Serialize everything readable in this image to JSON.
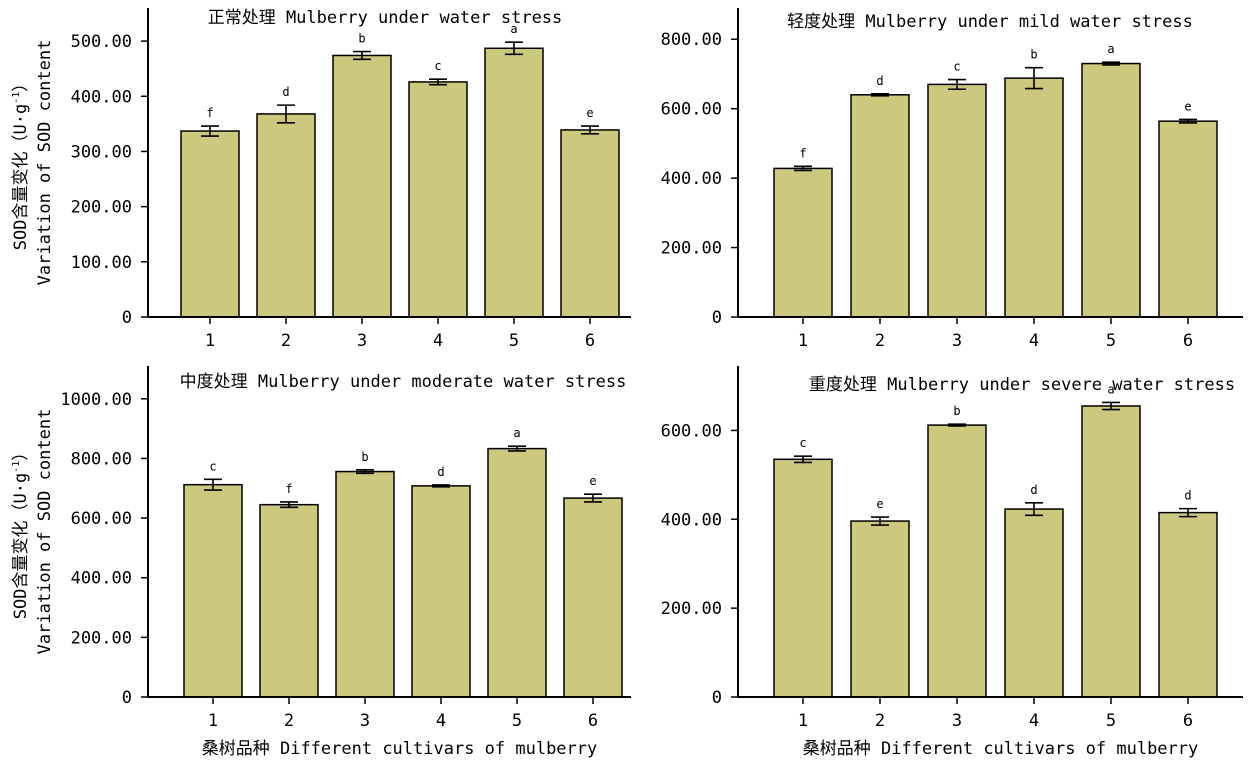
{
  "colors": {
    "bar_fill": "#CCC97E",
    "axis": "#000000"
  },
  "ylabel_line1": "SOD含量变化（U·g",
  "ylabel_sup": "-1",
  "ylabel_close": "）",
  "ylabel_line2": "Variation of SOD content",
  "xlabel": "桑树品种 Different cultivars of mulberry",
  "chart_data": [
    {
      "type": "bar",
      "title": "正常处理 Mulberry under water stress",
      "categories": [
        "1",
        "2",
        "3",
        "4",
        "5",
        "6"
      ],
      "values": [
        337,
        368,
        474,
        426,
        487,
        339
      ],
      "errors": [
        9,
        16,
        7,
        5,
        11,
        7
      ],
      "sig_letters": [
        "f",
        "d",
        "b",
        "c",
        "a",
        "e"
      ],
      "ylim": [
        0,
        560
      ],
      "yticks": [
        0,
        100,
        200,
        300,
        400,
        500
      ],
      "ytick_labels": [
        "0",
        "100.00",
        "200.00",
        "300.00",
        "400.00",
        "500.00"
      ]
    },
    {
      "type": "bar",
      "title": "轻度处理 Mulberry under mild water stress",
      "categories": [
        "1",
        "2",
        "3",
        "4",
        "5",
        "6"
      ],
      "values": [
        428,
        640,
        670,
        688,
        730,
        564
      ],
      "errors": [
        6,
        3,
        14,
        30,
        4,
        5
      ],
      "sig_letters": [
        "f",
        "d",
        "c",
        "b",
        "a",
        "e"
      ],
      "ylim": [
        0,
        890
      ],
      "yticks": [
        0,
        200,
        400,
        600,
        800
      ],
      "ytick_labels": [
        "0",
        "200.00",
        "400.00",
        "600.00",
        "800.00"
      ]
    },
    {
      "type": "bar",
      "title": "中度处理 Mulberry under moderate water stress",
      "categories": [
        "1",
        "2",
        "3",
        "4",
        "5",
        "6"
      ],
      "values": [
        712,
        645,
        756,
        708,
        833,
        667
      ],
      "errors": [
        18,
        9,
        6,
        3,
        8,
        13
      ],
      "sig_letters": [
        "c",
        "f",
        "b",
        "d",
        "a",
        "e"
      ],
      "ylim": [
        0,
        1110
      ],
      "yticks": [
        0,
        200,
        400,
        600,
        800,
        1000
      ],
      "ytick_labels": [
        "0",
        "200.00",
        "400.00",
        "600.00",
        "800.00",
        "1000.00"
      ]
    },
    {
      "type": "bar",
      "title": "重度处理 Mulberry under severe water stress",
      "categories": [
        "1",
        "2",
        "3",
        "4",
        "5",
        "6"
      ],
      "values": [
        535,
        396,
        612,
        423,
        655,
        415
      ],
      "errors": [
        7,
        9,
        2,
        14,
        8,
        9
      ],
      "sig_letters": [
        "c",
        "e",
        "b",
        "d",
        "a",
        "d"
      ],
      "ylim": [
        0,
        745
      ],
      "yticks": [
        0,
        200,
        400,
        600
      ],
      "ytick_labels": [
        "0",
        "200.00",
        "400.00",
        "600.00"
      ]
    }
  ]
}
